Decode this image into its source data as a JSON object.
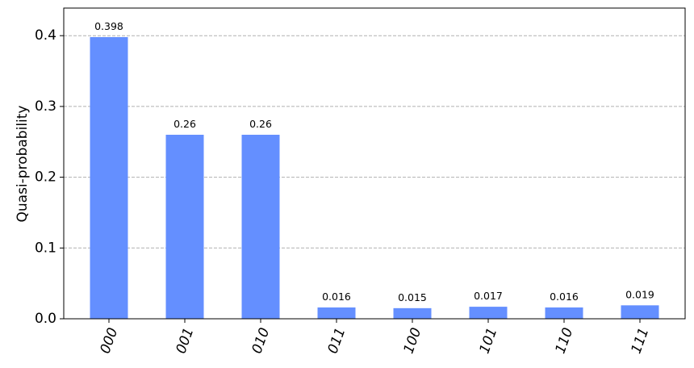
{
  "chart_data": {
    "type": "bar",
    "y_label": "Quasi-probability",
    "categories": [
      "000",
      "001",
      "010",
      "011",
      "100",
      "101",
      "110",
      "111"
    ],
    "values": [
      0.398,
      0.26,
      0.26,
      0.016,
      0.015,
      0.017,
      0.016,
      0.019
    ],
    "color": "#648fff",
    "ylim": [
      0,
      0.439
    ],
    "yticks": [
      {
        "value": 0,
        "label": "0.0"
      },
      0.1,
      0.2,
      0.3,
      0.4
    ],
    "grid": true
  }
}
